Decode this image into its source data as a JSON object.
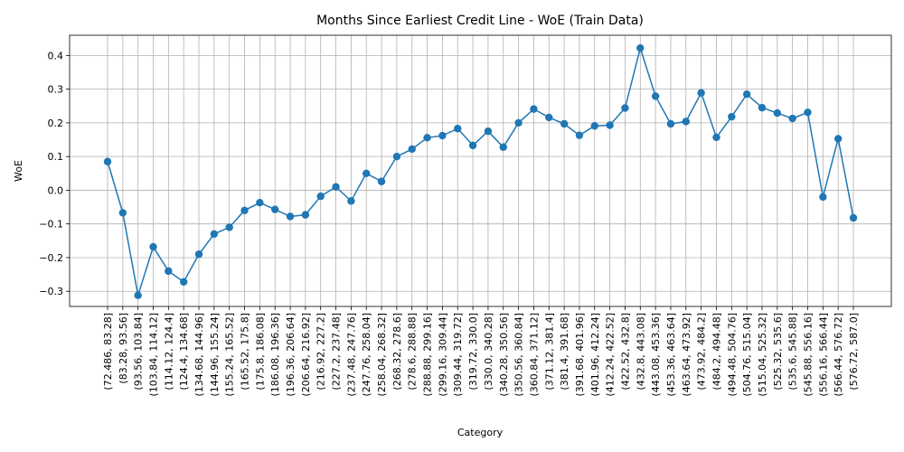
{
  "chart_data": {
    "type": "line",
    "title": "Months Since Earliest Credit Line - WoE (Train Data)",
    "xlabel": "Category",
    "ylabel": "WoE",
    "ylim": [
      -0.345,
      0.46
    ],
    "yticks": [
      -0.3,
      -0.2,
      -0.1,
      0.0,
      0.1,
      0.2,
      0.3,
      0.4
    ],
    "ytick_labels": [
      "−0.3",
      "−0.2",
      "−0.1",
      "0.0",
      "0.1",
      "0.2",
      "0.3",
      "0.4"
    ],
    "grid": true,
    "marker": "circle",
    "series_color": "#1f77b4",
    "categories": [
      "(72.486, 83.28]",
      "(83.28, 93.56]",
      "(93.56, 103.84]",
      "(103.84, 114.12]",
      "(114.12, 124.4]",
      "(124.4, 134.68]",
      "(134.68, 144.96]",
      "(144.96, 155.24]",
      "(155.24, 165.52]",
      "(165.52, 175.8]",
      "(175.8, 186.08]",
      "(186.08, 196.36]",
      "(196.36, 206.64]",
      "(206.64, 216.92]",
      "(216.92, 227.2]",
      "(227.2, 237.48]",
      "(237.48, 247.76]",
      "(247.76, 258.04]",
      "(258.04, 268.32]",
      "(268.32, 278.6]",
      "(278.6, 288.88]",
      "(288.88, 299.16]",
      "(299.16, 309.44]",
      "(309.44, 319.72]",
      "(319.72, 330.0]",
      "(330.0, 340.28]",
      "(340.28, 350.56]",
      "(350.56, 360.84]",
      "(360.84, 371.12]",
      "(371.12, 381.4]",
      "(381.4, 391.68]",
      "(391.68, 401.96]",
      "(401.96, 412.24]",
      "(412.24, 422.52]",
      "(422.52, 432.8]",
      "(432.8, 443.08]",
      "(443.08, 453.36]",
      "(453.36, 463.64]",
      "(463.64, 473.92]",
      "(473.92, 484.2]",
      "(484.2, 494.48]",
      "(494.48, 504.76]",
      "(504.76, 515.04]",
      "(515.04, 525.32]",
      "(525.32, 535.6]",
      "(535.6, 545.88]",
      "(545.88, 556.16]",
      "(556.16, 566.44]",
      "(566.44, 576.72]",
      "(576.72, 587.0]"
    ],
    "values": [
      0.085,
      -0.067,
      -0.312,
      -0.168,
      -0.24,
      -0.272,
      -0.19,
      -0.13,
      -0.11,
      -0.06,
      -0.037,
      -0.057,
      -0.078,
      -0.073,
      -0.018,
      0.01,
      -0.032,
      0.05,
      0.026,
      0.1,
      0.122,
      0.156,
      0.162,
      0.183,
      0.133,
      0.175,
      0.128,
      0.2,
      0.241,
      0.216,
      0.197,
      0.163,
      0.191,
      0.193,
      0.244,
      0.422,
      0.279,
      0.197,
      0.204,
      0.289,
      0.157,
      0.218,
      0.285,
      0.245,
      0.229,
      0.213,
      0.231,
      -0.02,
      0.153,
      -0.082
    ]
  }
}
